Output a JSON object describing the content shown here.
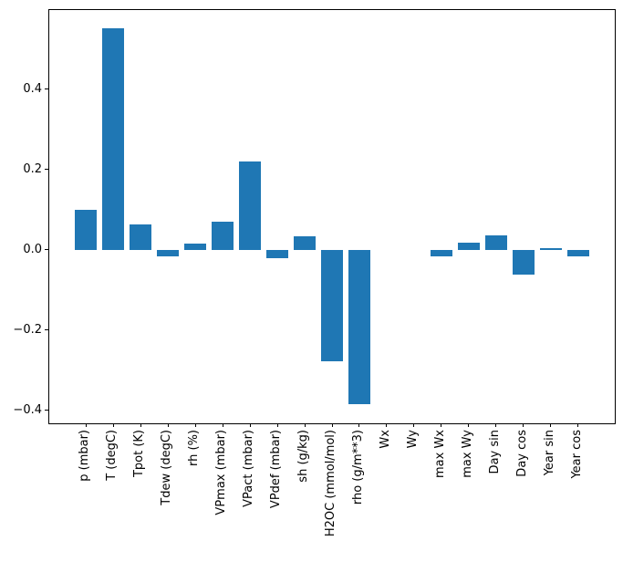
{
  "chart_data": {
    "type": "bar",
    "title": "",
    "xlabel": "",
    "ylabel": "",
    "categories": [
      "p (mbar)",
      "T (degC)",
      "Tpot (K)",
      "Tdew (degC)",
      "rh (%)",
      "VPmax (mbar)",
      "VPact (mbar)",
      "VPdef (mbar)",
      "sh (g/kg)",
      "H2OC (mmol/mol)",
      "rho (g/m**3)",
      "Wx",
      "Wy",
      "max Wx",
      "max Wy",
      "Day sin",
      "Day cos",
      "Year sin",
      "Year cos"
    ],
    "values": [
      0.1,
      0.551,
      0.064,
      -0.017,
      0.015,
      0.069,
      0.219,
      -0.02,
      0.033,
      -0.277,
      -0.385,
      0.0,
      0.0,
      -0.017,
      0.017,
      0.037,
      -0.062,
      0.003,
      -0.016
    ],
    "yticks": [
      0.4,
      0.2,
      0.0,
      -0.2,
      -0.4
    ],
    "ytick_labels": [
      "0.4",
      "0.2",
      "0.0",
      "−0.2",
      "−0.4"
    ],
    "ylim": [
      -0.432,
      0.597
    ],
    "xlim": [
      -1.34,
      19.34
    ],
    "bar_width_units": 0.8,
    "bar_color": "#1f77b4",
    "spine_color": "#000000",
    "text_color": "#000000",
    "background_color": "#ffffff",
    "grid": false,
    "legend_position": "none"
  }
}
